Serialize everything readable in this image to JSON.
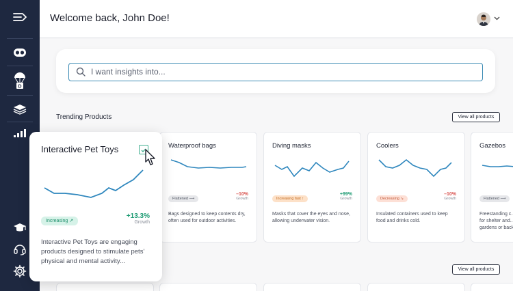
{
  "header": {
    "welcome": "Welcome back, John Doe!",
    "avatar_icon": "user-avatar",
    "menu_icon": "chevron-down-icon"
  },
  "sidebar": {
    "icons": [
      "collapse-menu-icon",
      "mask-logo-icon",
      "parachute-package-icon",
      "layers-icon",
      "signal-bars-icon",
      "graduation-cap-icon",
      "headset-icon",
      "gear-icon"
    ]
  },
  "search": {
    "placeholder": "I want insights into..."
  },
  "sections": {
    "trending_title": "Trending Products",
    "view_all_label": "View all products",
    "view_all_label_2": "View all products"
  },
  "featured": {
    "title": "Interactive Pet Toys",
    "badge": "Increasing ↗",
    "growth": "+13.3%",
    "growth_label": "Growth",
    "description": "Interactive Pet Toys are engaging products designed to stimulate pets' physical and mental activity..."
  },
  "cards": [
    {
      "title": "Waterproof bags",
      "badge": "Flattened ⟶",
      "badge_type": "flat",
      "growth": "–10%",
      "growth_label": "Growth",
      "growth_color": "#d9534f",
      "description": "Bags designed to keep contents dry, often used for outdoor activities."
    },
    {
      "title": "Diving masks",
      "badge": "Increasing fast ↑",
      "badge_type": "fast",
      "growth": "+99%",
      "growth_label": "Growth",
      "growth_color": "#1d9b73",
      "description": "Masks that cover the eyes and nose, allowing underwater vision."
    },
    {
      "title": "Coolers",
      "badge": "Decreasing ↘",
      "badge_type": "down",
      "growth": "–10%",
      "growth_label": "Growth",
      "growth_color": "#d9534f",
      "description": "Insulated containers used to keep food and drinks cold."
    },
    {
      "title": "Gazebos",
      "badge": "Flattened ⟶",
      "badge_type": "flat",
      "growth": "",
      "growth_label": "",
      "growth_color": "#d9534f",
      "description": "Freestanding c... for shelter and... gardens or back..."
    }
  ],
  "colors": {
    "sidebar_bg": "#1e2840",
    "accent": "#3c8bb4",
    "chart_line": "#2d86bd",
    "positive": "#1d9b73",
    "negative": "#d9534f"
  }
}
